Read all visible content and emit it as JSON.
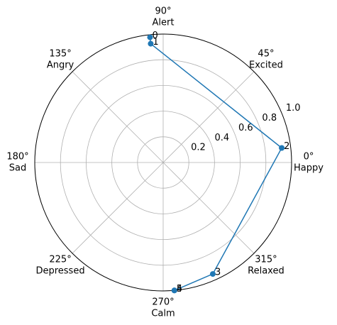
{
  "chart_data": {
    "type": "polar",
    "theta": [
      96,
      96,
      7,
      294,
      275,
      275
    ],
    "r": [
      0.98,
      0.93,
      0.93,
      0.95,
      1.0,
      1.0
    ],
    "point_labels": [
      0,
      1,
      2,
      3,
      4,
      5
    ],
    "color": "#1f77b4",
    "ylim": [
      0,
      1
    ],
    "yticks": [
      0.2,
      0.4,
      0.6,
      0.8,
      {
        "value": 1,
        "label": "1.0"
      }
    ],
    "xticks": [
      {
        "value": 0,
        "label": "0°"
      },
      {
        "value": 45,
        "label": "45°"
      },
      {
        "value": 90,
        "label": "90°"
      },
      {
        "value": 135,
        "label": "135°"
      },
      {
        "value": 180,
        "label": "180°"
      },
      {
        "value": 225,
        "label": "225°"
      },
      {
        "value": 270,
        "label": "270°"
      },
      {
        "value": 315,
        "label": "315°"
      }
    ],
    "angle_names": [
      "Happy",
      "Excited",
      "Alert",
      "Angry",
      "Sad",
      "Depressed",
      "Calm",
      "Relaxed"
    ],
    "grid": true
  }
}
